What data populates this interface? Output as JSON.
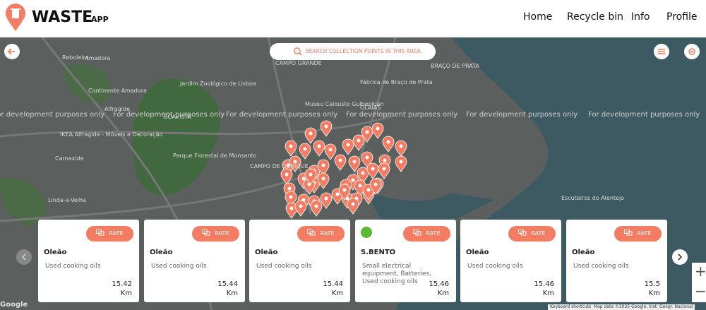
{
  "header": {
    "logo_text": "WASTE",
    "logo_sub": "APP",
    "nav": [
      "Home",
      "Recycle bin",
      "Info",
      "Profile"
    ]
  },
  "map": {
    "search": "SEARCH COLLECTION POINTS IN THIS AREA",
    "watermark": "For development purposes only",
    "labels": [
      "Amadora",
      "Reboleira",
      "Continente Amadora",
      "CAMPO GRANDE",
      "Jardim Zoológico de Lisboa",
      "Museu Calouste Gulbenkian",
      "Fábrica de Braço de Prata",
      "BRAÇO DE PRATA",
      "OLAIAS",
      "Alfragide",
      "BOAVISTA",
      "IKEA Alfragide - Móveis e Decoração",
      "Carnaxide",
      "Parque Florestal de Monsanto",
      "CAMPO DE OURIQUE",
      "Linda-a-Velha",
      "Escuteiros do Alentejo"
    ],
    "zoom": [
      "+",
      "−"
    ],
    "attribution": {
      "google": "Google",
      "shortcuts": "Keyboard shortcuts",
      "data": "Map data ©2025 Google, Inst. Geogr. Nacional"
    }
  },
  "cards": [
    {
      "name": "Oleão",
      "description": "Used cooking oils",
      "distance": 15.42,
      "unit": "Km",
      "action": "RATE"
    },
    {
      "name": "Oleão",
      "description": "Used cooking oils",
      "distance": 15.44,
      "unit": "Km",
      "action": "RATE"
    },
    {
      "name": "Oleão",
      "description": "Used cooking oils",
      "distance": 15.44,
      "unit": "Km",
      "action": "RATE"
    },
    {
      "name": "S.BENTO",
      "description": "Small electrical equipment, Batteries, Used cooking oils",
      "distance": 15.46,
      "unit": "Km",
      "action": "RATE"
    },
    {
      "name": "Oleão",
      "description": "Used cooking oils",
      "distance": 15.46,
      "unit": "Km",
      "action": "RATE"
    },
    {
      "name": "Oleão",
      "description": "Used cooking oils",
      "distance": 15.5,
      "unit": "Km",
      "action": "RATE"
    }
  ]
}
